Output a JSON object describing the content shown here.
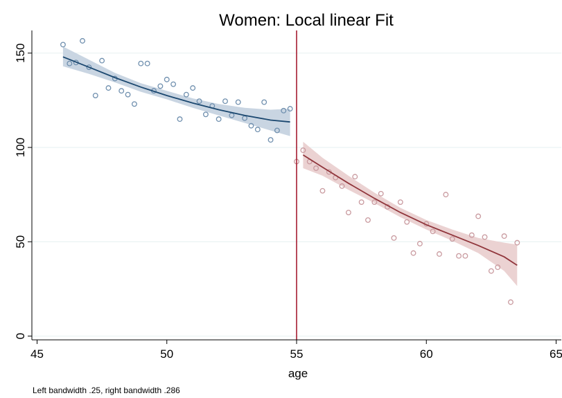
{
  "chart_data": {
    "type": "scatter",
    "title": "Women: Local linear Fit",
    "xlabel": "age",
    "ylabel": "",
    "note": "Left bandwidth .25, right bandwidth .286",
    "xlim": [
      44.8,
      65.2
    ],
    "ylim": [
      -2,
      162
    ],
    "x_ticks": [
      45,
      50,
      55,
      60,
      65
    ],
    "x_tick_labels": [
      "45",
      "50",
      "55",
      "60",
      "65"
    ],
    "y_ticks": [
      0,
      50,
      100,
      150
    ],
    "y_tick_labels": [
      "0",
      "50",
      "100",
      "150"
    ],
    "grid": true,
    "cutoff": 55,
    "colors": {
      "left": "#1a476f",
      "left_band": "#c9d5e2",
      "right": "#90353b",
      "right_band": "#ebd2d2",
      "left_points": "#6f8fae",
      "right_points": "#c99a9f",
      "cutoff_line": "#a51c30",
      "grid": "#eaf2f3"
    },
    "series": [
      {
        "side": "left",
        "points": [
          [
            46.0,
            154.5
          ],
          [
            46.25,
            144.5
          ],
          [
            46.5,
            145.0
          ],
          [
            46.75,
            156.5
          ],
          [
            47.0,
            142.5
          ],
          [
            47.25,
            127.5
          ],
          [
            47.5,
            146.0
          ],
          [
            47.75,
            131.5
          ],
          [
            48.0,
            136.5
          ],
          [
            48.25,
            130.0
          ],
          [
            48.5,
            128.0
          ],
          [
            48.75,
            123.0
          ],
          [
            49.0,
            144.5
          ],
          [
            49.25,
            144.5
          ],
          [
            49.5,
            130.0
          ],
          [
            49.75,
            132.5
          ],
          [
            50.0,
            136.0
          ],
          [
            50.25,
            133.5
          ],
          [
            50.5,
            115.0
          ],
          [
            50.75,
            128.0
          ],
          [
            51.0,
            131.5
          ],
          [
            51.25,
            124.5
          ],
          [
            51.5,
            117.5
          ],
          [
            51.75,
            122.0
          ],
          [
            52.0,
            115.0
          ],
          [
            52.25,
            124.5
          ],
          [
            52.5,
            117.0
          ],
          [
            52.75,
            124.0
          ],
          [
            53.0,
            115.5
          ],
          [
            53.25,
            111.5
          ],
          [
            53.5,
            109.5
          ],
          [
            53.75,
            124.0
          ],
          [
            54.0,
            104.0
          ],
          [
            54.25,
            109.0
          ],
          [
            54.5,
            119.5
          ],
          [
            54.75,
            120.5
          ]
        ],
        "fit_x": [
          46.0,
          47.0,
          48.0,
          49.0,
          50.0,
          51.0,
          52.0,
          53.0,
          54.0,
          54.75
        ],
        "fit_y": [
          148.0,
          142.5,
          137.0,
          132.0,
          127.5,
          123.5,
          120.0,
          117.0,
          114.5,
          113.5
        ],
        "fit_lower": [
          143.0,
          139.0,
          134.5,
          129.5,
          125.5,
          121.0,
          117.0,
          113.0,
          109.0,
          106.0
        ],
        "fit_upper": [
          153.5,
          146.5,
          139.5,
          134.0,
          130.0,
          126.0,
          123.0,
          121.0,
          120.0,
          120.5
        ]
      },
      {
        "side": "right",
        "points": [
          [
            55.0,
            92.5
          ],
          [
            55.25,
            98.5
          ],
          [
            55.5,
            92.5
          ],
          [
            55.75,
            89.0
          ],
          [
            56.0,
            77.0
          ],
          [
            56.25,
            87.0
          ],
          [
            56.5,
            84.0
          ],
          [
            56.75,
            79.5
          ],
          [
            57.0,
            65.5
          ],
          [
            57.25,
            84.5
          ],
          [
            57.5,
            71.0
          ],
          [
            57.75,
            61.5
          ],
          [
            58.0,
            71.0
          ],
          [
            58.25,
            75.5
          ],
          [
            58.5,
            68.5
          ],
          [
            58.75,
            52.0
          ],
          [
            59.0,
            71.0
          ],
          [
            59.25,
            60.5
          ],
          [
            59.5,
            44.0
          ],
          [
            59.75,
            49.0
          ],
          [
            60.0,
            59.5
          ],
          [
            60.25,
            55.5
          ],
          [
            60.5,
            43.5
          ],
          [
            60.75,
            75.0
          ],
          [
            61.0,
            51.5
          ],
          [
            61.25,
            42.5
          ],
          [
            61.5,
            42.5
          ],
          [
            61.75,
            53.5
          ],
          [
            62.0,
            63.5
          ],
          [
            62.25,
            52.5
          ],
          [
            62.5,
            34.5
          ],
          [
            62.75,
            36.5
          ],
          [
            63.0,
            53.0
          ],
          [
            63.25,
            18.0
          ],
          [
            63.5,
            49.5
          ]
        ],
        "fit_x": [
          55.25,
          56.0,
          57.0,
          58.0,
          59.0,
          60.0,
          61.0,
          62.0,
          63.0,
          63.5
        ],
        "fit_y": [
          96.0,
          89.5,
          81.0,
          73.0,
          65.5,
          59.0,
          53.5,
          48.0,
          42.0,
          37.5
        ],
        "fit_lower": [
          89.0,
          85.0,
          77.5,
          70.5,
          63.0,
          56.5,
          50.5,
          44.0,
          34.5,
          26.5
        ],
        "fit_upper": [
          103.0,
          94.5,
          85.0,
          76.0,
          68.0,
          61.5,
          56.5,
          52.0,
          49.5,
          48.5
        ]
      }
    ]
  }
}
